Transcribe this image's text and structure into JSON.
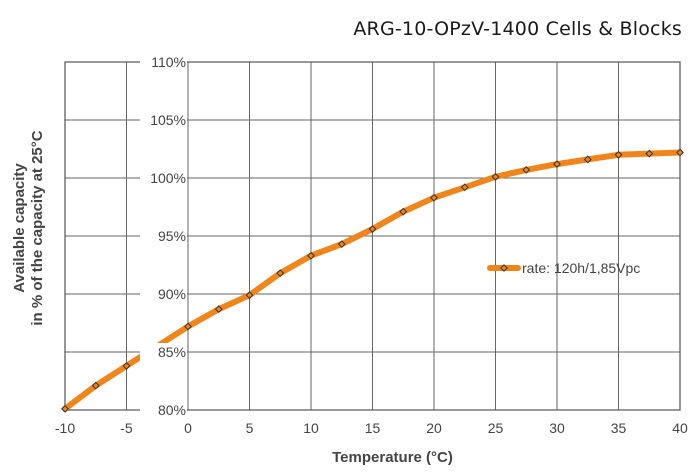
{
  "title": "ARG-10-OPzV-1400 Cells & Blocks",
  "chart_data": {
    "type": "line",
    "title": "ARG-10-OPzV-1400 Cells & Blocks",
    "xlabel": "Temperature (°C)",
    "ylabel_line1": "Available capacity",
    "ylabel_line2": "in % of the capacity at 25°C",
    "xlim": [
      -10,
      40
    ],
    "ylim": [
      80,
      110
    ],
    "x_ticks": [
      -10,
      -5,
      0,
      5,
      10,
      15,
      20,
      25,
      30,
      35,
      40
    ],
    "x_tick_labels": [
      "-10",
      "-5",
      "0",
      "5",
      "10",
      "15",
      "20",
      "25",
      "30",
      "35",
      "40"
    ],
    "y_ticks": [
      80,
      85,
      90,
      95,
      100,
      105,
      110
    ],
    "y_tick_labels": [
      "80%",
      "85%",
      "90%",
      "95%",
      "100%",
      "105%",
      "110%"
    ],
    "grid": true,
    "legend_position": "right",
    "color": "#f0851c",
    "series": [
      {
        "name": "rate: 120h/1,85Vpc",
        "x": [
          -10,
          -7.5,
          -5,
          0,
          2.5,
          5,
          7.5,
          10,
          12.5,
          15,
          17.5,
          20,
          22.5,
          25,
          27.5,
          30,
          32.5,
          35,
          37.5,
          40
        ],
        "y": [
          80.1,
          82.1,
          83.8,
          87.2,
          88.7,
          89.9,
          91.8,
          93.3,
          94.3,
          95.6,
          97.1,
          98.3,
          99.2,
          100.1,
          100.7,
          101.2,
          101.6,
          102.0,
          102.1,
          102.2
        ]
      }
    ]
  }
}
